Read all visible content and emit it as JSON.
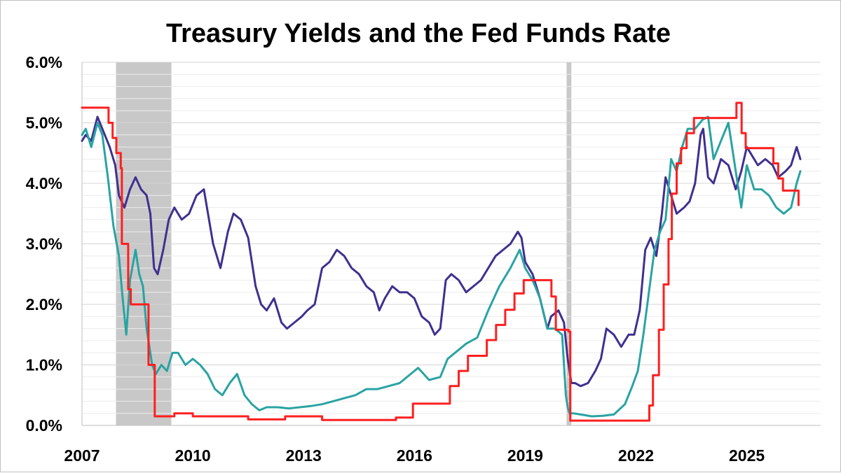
{
  "chart_data": {
    "type": "line",
    "title": "Treasury Yields and the Fed Funds Rate",
    "xlabel": "",
    "ylabel": "",
    "xlim": [
      2007.0,
      2027.0
    ],
    "ylim": [
      0,
      6
    ],
    "x_ticks": [
      {
        "value": 2007,
        "label": "2007"
      },
      {
        "value": 2010,
        "label": "2010"
      },
      {
        "value": 2013,
        "label": "2013"
      },
      {
        "value": 2016,
        "label": "2016"
      },
      {
        "value": 2019,
        "label": "2019"
      },
      {
        "value": 2022,
        "label": "2022"
      },
      {
        "value": 2025,
        "label": "2025"
      }
    ],
    "y_ticks": [
      {
        "value": 0,
        "label": "0.0%"
      },
      {
        "value": 1,
        "label": "1.0%"
      },
      {
        "value": 2,
        "label": "2.0%"
      },
      {
        "value": 3,
        "label": "3.0%"
      },
      {
        "value": 4,
        "label": "4.0%"
      },
      {
        "value": 5,
        "label": "5.0%"
      },
      {
        "value": 6,
        "label": "6.0%"
      }
    ],
    "minor_gridline_step": 0.2,
    "grid": true,
    "legend": "none",
    "recessions": [
      {
        "start": 2007.92,
        "end": 2009.42
      },
      {
        "start": 2020.12,
        "end": 2020.25
      }
    ],
    "series": [
      {
        "color": "#3f3090",
        "x": [
          2007.0,
          2007.1,
          2007.25,
          2007.42,
          2007.55,
          2007.75,
          2007.9,
          2008.0,
          2008.15,
          2008.3,
          2008.45,
          2008.6,
          2008.75,
          2008.85,
          2008.95,
          2009.05,
          2009.2,
          2009.35,
          2009.5,
          2009.7,
          2009.9,
          2010.1,
          2010.3,
          2010.55,
          2010.75,
          2010.95,
          2011.1,
          2011.3,
          2011.5,
          2011.7,
          2011.85,
          2012.0,
          2012.2,
          2012.4,
          2012.55,
          2012.75,
          2012.95,
          2013.1,
          2013.3,
          2013.5,
          2013.7,
          2013.9,
          2014.1,
          2014.3,
          2014.5,
          2014.7,
          2014.9,
          2015.05,
          2015.2,
          2015.4,
          2015.6,
          2015.8,
          2016.0,
          2016.2,
          2016.4,
          2016.55,
          2016.7,
          2016.85,
          2017.0,
          2017.2,
          2017.4,
          2017.6,
          2017.8,
          2018.0,
          2018.2,
          2018.4,
          2018.6,
          2018.8,
          2018.9,
          2019.0,
          2019.2,
          2019.4,
          2019.6,
          2019.7,
          2019.9,
          2020.05,
          2020.15,
          2020.25,
          2020.35,
          2020.5,
          2020.7,
          2020.9,
          2021.05,
          2021.2,
          2021.4,
          2021.6,
          2021.8,
          2021.95,
          2022.1,
          2022.25,
          2022.4,
          2022.55,
          2022.7,
          2022.8,
          2022.95,
          2023.1,
          2023.3,
          2023.45,
          2023.6,
          2023.75,
          2023.82,
          2023.95,
          2024.1,
          2024.3,
          2024.5,
          2024.7,
          2024.85,
          2025.0,
          2025.1,
          2025.3,
          2025.5,
          2025.7,
          2025.85,
          2026.05,
          2026.2,
          2026.35,
          2026.45
        ],
        "y": [
          4.7,
          4.8,
          4.7,
          5.1,
          4.9,
          4.6,
          4.3,
          3.8,
          3.6,
          3.9,
          4.1,
          3.9,
          3.8,
          3.5,
          2.6,
          2.5,
          2.9,
          3.4,
          3.6,
          3.4,
          3.5,
          3.8,
          3.9,
          3.0,
          2.6,
          3.2,
          3.5,
          3.4,
          3.1,
          2.3,
          2.0,
          1.9,
          2.1,
          1.7,
          1.6,
          1.7,
          1.8,
          1.9,
          2.0,
          2.6,
          2.7,
          2.9,
          2.8,
          2.6,
          2.5,
          2.3,
          2.2,
          1.9,
          2.1,
          2.3,
          2.2,
          2.2,
          2.1,
          1.8,
          1.7,
          1.5,
          1.6,
          2.4,
          2.5,
          2.4,
          2.2,
          2.3,
          2.4,
          2.6,
          2.8,
          2.9,
          3.0,
          3.2,
          3.1,
          2.7,
          2.5,
          2.1,
          1.6,
          1.8,
          1.9,
          1.7,
          1.1,
          0.7,
          0.7,
          0.65,
          0.7,
          0.9,
          1.1,
          1.6,
          1.5,
          1.3,
          1.5,
          1.5,
          1.9,
          2.9,
          3.1,
          2.8,
          3.5,
          4.1,
          3.8,
          3.5,
          3.6,
          3.7,
          4.0,
          4.8,
          4.9,
          4.1,
          4.0,
          4.4,
          4.3,
          3.9,
          4.2,
          4.6,
          4.5,
          4.3,
          4.4,
          4.3,
          4.1,
          4.2,
          4.3,
          4.6,
          4.4
        ],
        "legend_name": ""
      },
      {
        "color": "#2aa3a3",
        "x": [
          2007.0,
          2007.1,
          2007.25,
          2007.42,
          2007.55,
          2007.7,
          2007.85,
          2008.0,
          2008.1,
          2008.2,
          2008.3,
          2008.45,
          2008.55,
          2008.65,
          2008.75,
          2008.9,
          2009.0,
          2009.15,
          2009.3,
          2009.45,
          2009.6,
          2009.8,
          2010.0,
          2010.2,
          2010.4,
          2010.6,
          2010.8,
          2011.0,
          2011.2,
          2011.4,
          2011.6,
          2011.8,
          2012.0,
          2012.3,
          2012.6,
          2012.9,
          2013.2,
          2013.5,
          2013.8,
          2014.1,
          2014.4,
          2014.7,
          2015.0,
          2015.3,
          2015.6,
          2015.9,
          2016.1,
          2016.4,
          2016.7,
          2016.9,
          2017.1,
          2017.4,
          2017.7,
          2018.0,
          2018.3,
          2018.6,
          2018.85,
          2019.0,
          2019.2,
          2019.4,
          2019.6,
          2019.8,
          2020.0,
          2020.1,
          2020.15,
          2020.2,
          2020.3,
          2020.5,
          2020.8,
          2021.1,
          2021.4,
          2021.7,
          2021.9,
          2022.05,
          2022.2,
          2022.35,
          2022.5,
          2022.65,
          2022.8,
          2022.95,
          2023.1,
          2023.25,
          2023.4,
          2023.6,
          2023.8,
          2023.95,
          2024.1,
          2024.3,
          2024.5,
          2024.7,
          2024.85,
          2025.0,
          2025.2,
          2025.4,
          2025.6,
          2025.8,
          2026.0,
          2026.2,
          2026.35,
          2026.45
        ],
        "y": [
          4.8,
          4.9,
          4.6,
          5.0,
          4.8,
          4.1,
          3.3,
          2.8,
          2.1,
          1.5,
          2.4,
          2.9,
          2.5,
          2.3,
          1.6,
          1.0,
          0.85,
          1.0,
          0.9,
          1.2,
          1.2,
          1.0,
          1.1,
          1.0,
          0.85,
          0.6,
          0.5,
          0.7,
          0.85,
          0.5,
          0.35,
          0.25,
          0.3,
          0.3,
          0.28,
          0.3,
          0.32,
          0.35,
          0.4,
          0.45,
          0.5,
          0.6,
          0.6,
          0.65,
          0.7,
          0.85,
          0.95,
          0.75,
          0.8,
          1.1,
          1.2,
          1.35,
          1.45,
          1.9,
          2.3,
          2.6,
          2.9,
          2.6,
          2.4,
          2.1,
          1.6,
          1.6,
          1.5,
          0.5,
          0.3,
          0.2,
          0.2,
          0.18,
          0.15,
          0.16,
          0.18,
          0.35,
          0.65,
          0.9,
          1.5,
          2.2,
          2.9,
          3.2,
          3.4,
          4.4,
          4.2,
          4.6,
          4.9,
          4.9,
          5.05,
          5.1,
          4.4,
          4.7,
          5.0,
          4.2,
          3.6,
          4.3,
          3.9,
          3.9,
          3.8,
          3.6,
          3.5,
          3.6,
          4.0,
          4.2
        ],
        "legend_name": ""
      },
      {
        "color": "#ff1f1f",
        "step": true,
        "x": [
          2007.0,
          2007.58,
          2007.72,
          2007.83,
          2007.93,
          2008.05,
          2008.08,
          2008.25,
          2008.32,
          2008.8,
          2008.97,
          2009.5,
          2010.0,
          2011.5,
          2012.5,
          2013.5,
          2014.5,
          2015.5,
          2015.96,
          2016.96,
          2017.2,
          2017.45,
          2017.96,
          2018.21,
          2018.46,
          2018.71,
          2018.96,
          2019.55,
          2019.71,
          2019.83,
          2020.17,
          2020.22,
          2021.0,
          2022.2,
          2022.36,
          2022.46,
          2022.62,
          2022.75,
          2022.88,
          2022.97,
          2023.1,
          2023.22,
          2023.37,
          2023.57,
          2024.72,
          2024.86,
          2024.97,
          2025.72,
          2025.85,
          2025.98,
          2026.4
        ],
        "y": [
          5.25,
          5.25,
          5.0,
          4.75,
          4.5,
          4.25,
          3.0,
          2.25,
          2.0,
          1.0,
          0.15,
          0.2,
          0.15,
          0.1,
          0.15,
          0.09,
          0.09,
          0.13,
          0.36,
          0.65,
          0.9,
          1.15,
          1.41,
          1.66,
          1.91,
          2.18,
          2.4,
          2.4,
          2.13,
          1.58,
          1.55,
          0.08,
          0.08,
          0.08,
          0.33,
          0.83,
          1.58,
          2.33,
          3.08,
          3.83,
          4.33,
          4.58,
          4.83,
          5.08,
          5.33,
          4.83,
          4.58,
          4.33,
          4.08,
          3.88,
          3.64
        ],
        "legend_name": ""
      }
    ]
  }
}
